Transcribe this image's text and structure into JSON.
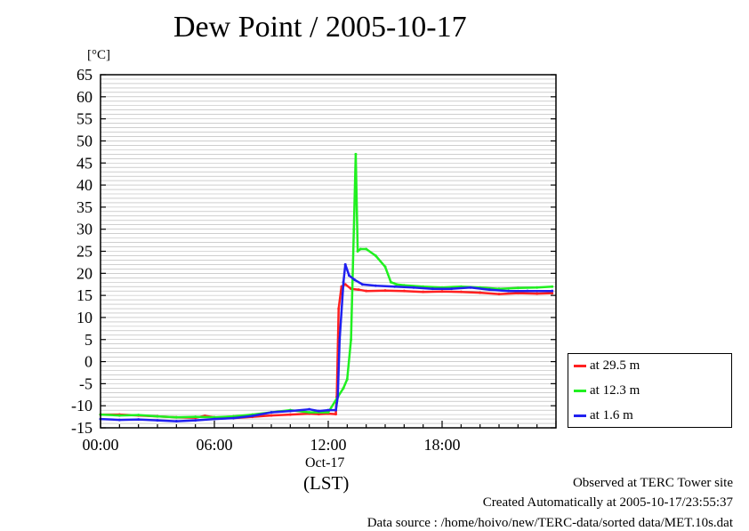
{
  "chart_data": {
    "type": "line",
    "title": "Dew Point / 2005-10-17",
    "ylabel": "[°C]",
    "ylim": [
      -15,
      65
    ],
    "yticks": [
      "65",
      "60",
      "55",
      "50",
      "45",
      "40",
      "35",
      "30",
      "25",
      "20",
      "15",
      "10",
      "5",
      "0",
      "-5",
      "-10",
      "-15"
    ],
    "xlim": [
      0,
      24
    ],
    "xticks": [
      {
        "value": 0,
        "label": "00:00"
      },
      {
        "value": 6,
        "label": "06:00"
      },
      {
        "value": 12,
        "label": "12:00"
      },
      {
        "value": 18,
        "label": "18:00"
      }
    ],
    "date_label": "Oct-17",
    "timezone_label": "(LST)",
    "grid": true,
    "legend_position": "right",
    "series": [
      {
        "name": "at 29.5 m",
        "color": "#ff2020",
        "x": [
          0,
          1,
          2,
          3,
          4,
          5,
          5.5,
          6,
          7,
          8,
          9,
          10,
          11,
          11.5,
          12,
          12.4,
          12.45,
          12.55,
          12.7,
          12.9,
          13.2,
          13.6,
          14,
          15,
          16,
          17,
          18,
          19,
          20,
          21,
          22,
          23,
          23.8
        ],
        "y": [
          -12,
          -12,
          -12.2,
          -12.4,
          -12.6,
          -12.7,
          -12.3,
          -12.6,
          -12.8,
          -12.5,
          -12.2,
          -12,
          -11.8,
          -11.9,
          -11.8,
          -11.9,
          -8,
          12,
          17,
          17.5,
          16.5,
          16.3,
          16,
          16.1,
          16,
          15.8,
          15.9,
          15.8,
          15.6,
          15.3,
          15.5,
          15.4,
          15.5
        ]
      },
      {
        "name": "at 12.3 m",
        "color": "#20f020",
        "x": [
          0,
          1,
          2,
          3,
          4,
          5,
          6,
          7,
          8,
          9,
          10,
          11,
          12,
          12.5,
          12.8,
          13.0,
          13.2,
          13.35,
          13.45,
          13.55,
          13.7,
          14,
          14.5,
          15,
          15.3,
          15.6,
          16,
          17,
          18,
          19,
          20,
          21,
          22,
          23,
          23.8
        ],
        "y": [
          -12,
          -12.2,
          -12.1,
          -12.4,
          -12.6,
          -12.5,
          -12.6,
          -12.4,
          -12,
          -11.5,
          -11,
          -11.5,
          -11.5,
          -8,
          -6,
          -4,
          5,
          30,
          47,
          25,
          25.5,
          25.5,
          24,
          21.5,
          18,
          17.5,
          17.3,
          17,
          16.8,
          17,
          16.8,
          16.5,
          16.7,
          16.8,
          17
        ]
      },
      {
        "name": "at 1.6 m",
        "color": "#2020f0",
        "x": [
          0,
          1,
          2,
          3,
          4,
          5,
          6,
          7,
          8,
          9,
          10,
          11,
          11.5,
          12,
          12.4,
          12.5,
          12.6,
          12.8,
          12.9,
          13.1,
          13.4,
          13.8,
          14.5,
          15.5,
          16.5,
          17.5,
          18.5,
          19.5,
          20.5,
          21.5,
          22.5,
          23.8
        ],
        "y": [
          -13,
          -13.2,
          -13.1,
          -13.3,
          -13.5,
          -13.3,
          -13,
          -12.8,
          -12.3,
          -11.5,
          -11.2,
          -10.8,
          -11.2,
          -11,
          -11,
          -8,
          5,
          18,
          22,
          19.5,
          18.5,
          17.5,
          17.2,
          17,
          16.8,
          16.5,
          16.5,
          16.8,
          16.3,
          16,
          16,
          16
        ]
      }
    ]
  },
  "footer": {
    "line1": "Observed at TERC Tower site",
    "line2": "Created Automatically at 2005-10-17/23:55:37",
    "line3": "Data source : /home/hoivo/new/TERC-data/sorted  data/MET.10s.dat"
  }
}
